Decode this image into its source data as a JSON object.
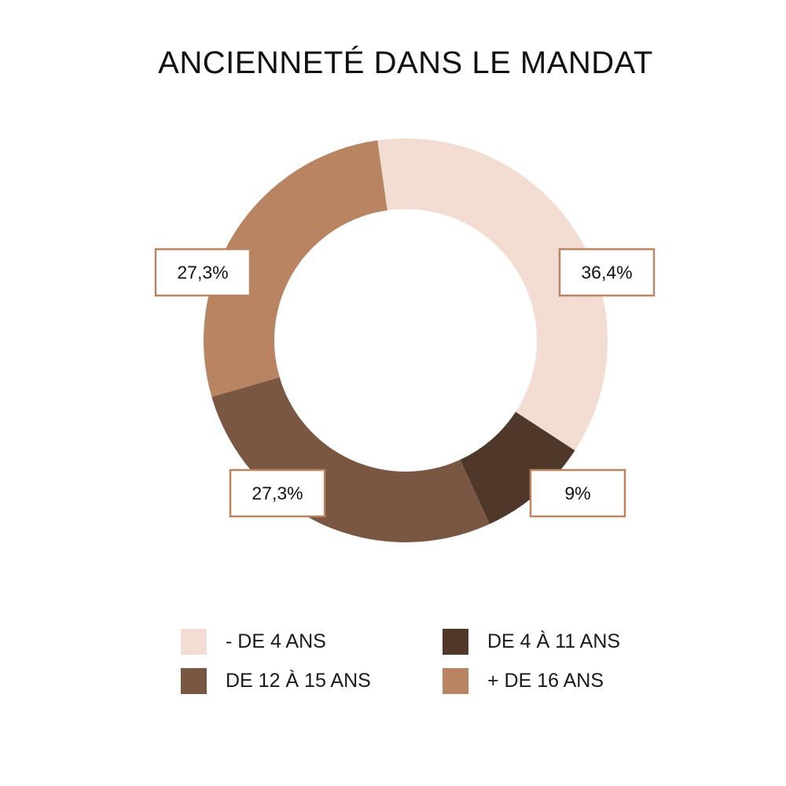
{
  "chart_data": {
    "type": "pie",
    "variant": "donut",
    "title": "ANCIENNETÉ DANS LE MANDAT",
    "categories": [
      "- DE 4 ANS",
      "DE 4 À 11 ANS",
      "DE 12 À 15 ANS",
      "+ DE 16 ANS"
    ],
    "values": [
      36.4,
      9,
      27.3,
      27.3
    ],
    "labels": [
      "36,4%",
      "9%",
      "27,3%",
      "27,3%"
    ],
    "colors": [
      "#f3ddd2",
      "#4f3829",
      "#795742",
      "#b88462"
    ],
    "label_border_color": "#b88462",
    "legend_position": "bottom",
    "start_angle_deg": -8
  }
}
